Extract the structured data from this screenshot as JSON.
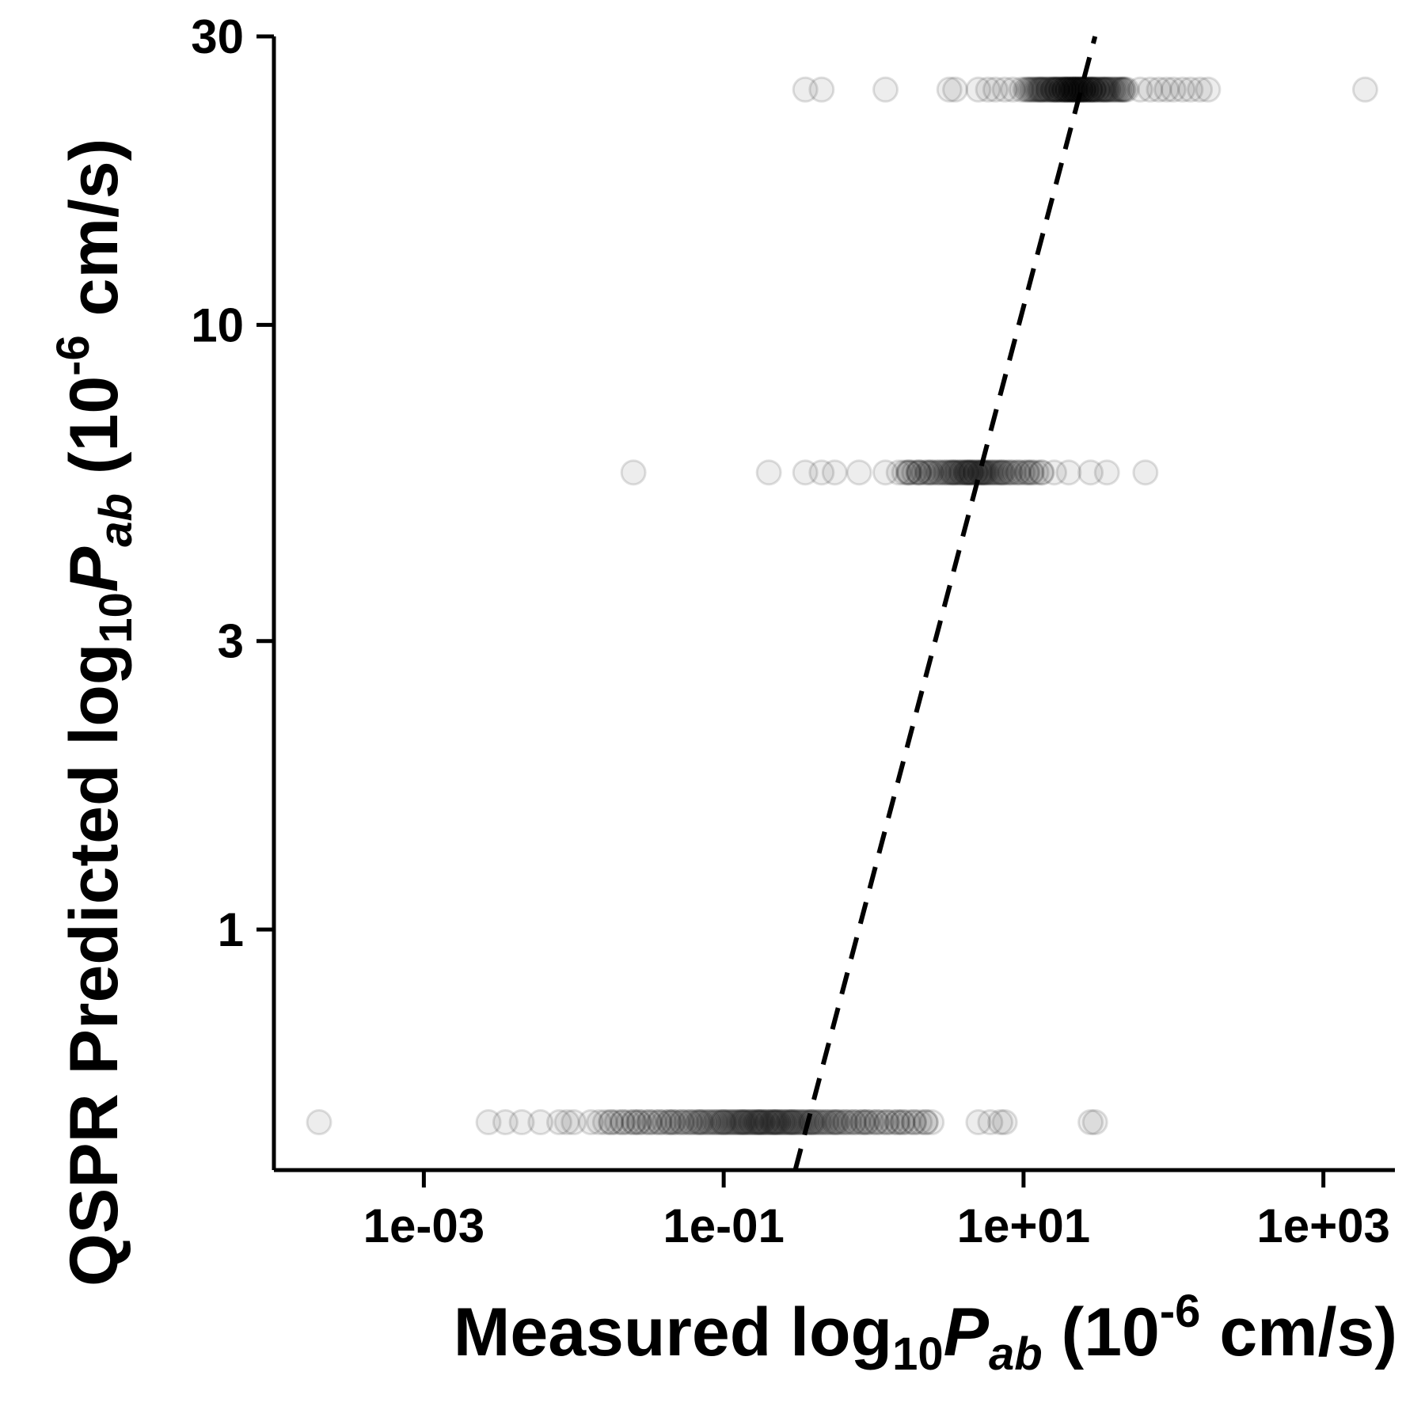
{
  "chart_data": {
    "type": "scatter",
    "title": "",
    "x_scale": "log10",
    "y_scale": "log10",
    "xlim": [
      0.0001,
      3000
    ],
    "ylim": [
      0.4,
      30
    ],
    "x_ticks": [
      {
        "value": 0.001,
        "label": "1e-03"
      },
      {
        "value": 0.1,
        "label": "1e-01"
      },
      {
        "value": 10,
        "label": "1e+01"
      },
      {
        "value": 1000,
        "label": "1e+03"
      }
    ],
    "y_ticks": [
      {
        "value": 1,
        "label": "1"
      },
      {
        "value": 3,
        "label": "3"
      },
      {
        "value": 10,
        "label": "10"
      },
      {
        "value": 30,
        "label": "30"
      }
    ],
    "xlabel": {
      "prefix": "Measured log",
      "sub": "10",
      "var": "P",
      "var_sub": "ab",
      "unit_open": " (10",
      "unit_sup": "-6",
      "unit_close": " cm/s)"
    },
    "ylabel": {
      "prefix": "QSPR Predicted log",
      "sub": "10",
      "var": "P",
      "var_sub": "ab",
      "unit_open": " (10",
      "unit_sup": "-6",
      "unit_close": " cm/s)"
    },
    "point_style": {
      "color": "#000000",
      "fill_opacity": 0.07,
      "stroke_opacity": 0.12
    },
    "reference_line": {
      "style": "dashed",
      "color": "#000000",
      "from": [
        0.3,
        0.4
      ],
      "to": [
        30,
        30
      ]
    },
    "series": [
      {
        "y": 24.5,
        "x_sparse": [
          0.35,
          0.45,
          1.2,
          3.2,
          3.5,
          5.0,
          5.8,
          6.5,
          7.5,
          8.5,
          60,
          70,
          80,
          90,
          100,
          115,
          130,
          150,
          170,
          1900
        ],
        "x_dense_range": [
          10,
          50
        ],
        "x_dense_count": 90
      },
      {
        "y": 5.7,
        "x_sparse": [
          0.025,
          0.2,
          0.35,
          0.45,
          0.55,
          0.8,
          1.2,
          1.7,
          2.0,
          16,
          20,
          28,
          36,
          65
        ],
        "x_dense_range": [
          1.5,
          14
        ],
        "x_dense_count": 70
      },
      {
        "y": 0.48,
        "x_sparse": [
          0.0002,
          0.0027,
          0.0035,
          0.0045,
          0.006,
          0.008,
          0.009,
          0.01,
          0.013,
          5.0,
          6.0,
          7.0,
          7.5,
          28,
          30
        ],
        "x_dense_range": [
          0.015,
          2.5
        ],
        "x_dense_count": 140
      }
    ]
  }
}
